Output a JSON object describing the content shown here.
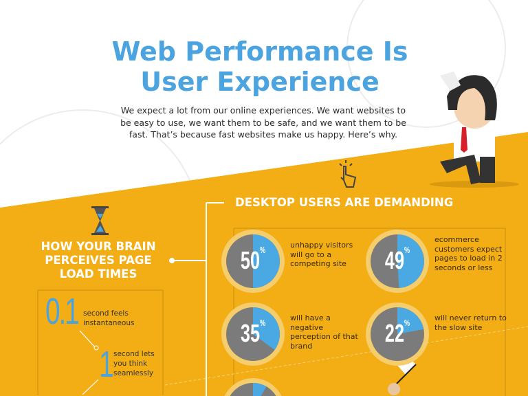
{
  "header": {
    "title_line1": "Web Performance Is",
    "title_line2": "User Experience",
    "intro": "We expect a lot from our online experiences. We want websites to be easy to use, we want them to be safe, and we want them to be fast. That’s because fast websites make us happy. Here’s why."
  },
  "brain_section": {
    "icon": "hourglass-icon",
    "heading_line1": "HOW YOUR BRAIN",
    "heading_line2": "PERCEIVES PAGE",
    "heading_line3": "LOAD TIMES",
    "items": [
      {
        "value": "0.1",
        "text_line1": "second feels",
        "text_line2": "instantaneous"
      },
      {
        "value": "1",
        "text_line1": "second lets",
        "text_line2": "you think",
        "text_line3": "seamlessly"
      }
    ]
  },
  "desktop_section": {
    "icon": "pointer-hand-icon",
    "heading": "DESKTOP USERS ARE DEMANDING",
    "stats": [
      {
        "percent": 50,
        "label": "50",
        "unit": "%",
        "text": "unhappy visitors will go to a competing site"
      },
      {
        "percent": 49,
        "label": "49",
        "unit": "%",
        "text": "ecommerce customers expect pages to load in 2 seconds or less"
      },
      {
        "percent": 35,
        "label": "35",
        "unit": "%",
        "text": "will have a negative perception of that brand"
      },
      {
        "percent": 22,
        "label": "22",
        "unit": "%",
        "text": "will never return to the slow site"
      }
    ]
  },
  "colors": {
    "accent_yellow": "#f2ae14",
    "title_blue": "#4ba4df",
    "pie_gray": "#7b7b7b",
    "pie_blue": "#4aa8e2",
    "ring": "#f6cd6c"
  }
}
